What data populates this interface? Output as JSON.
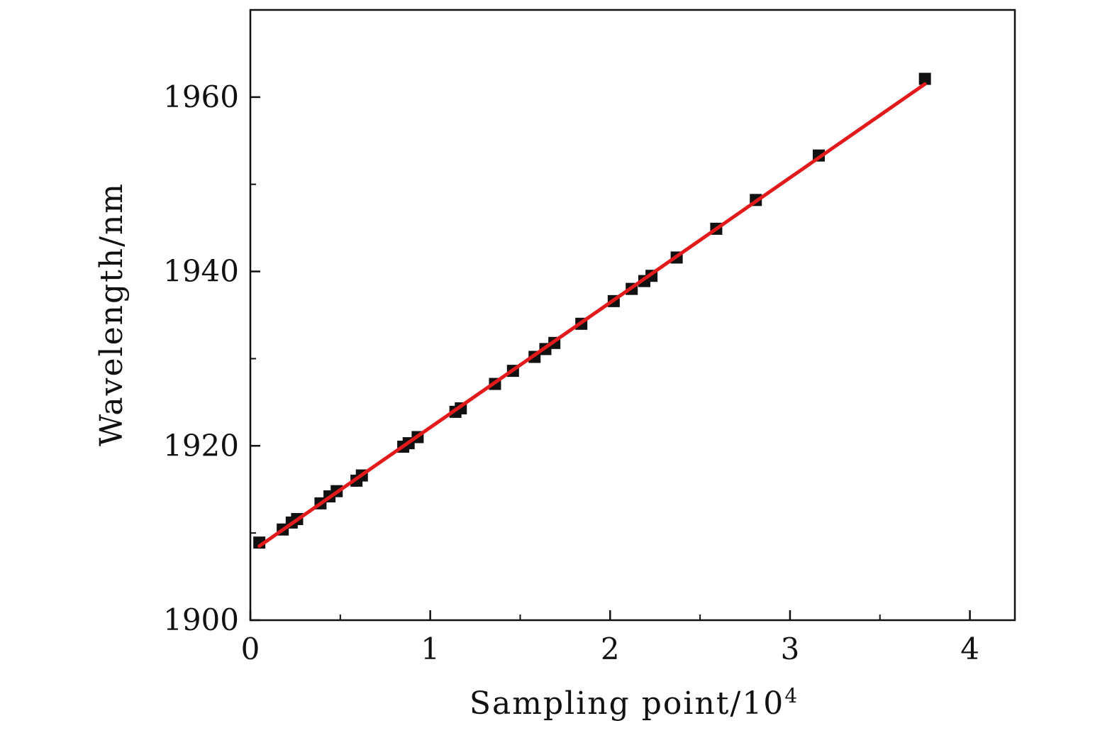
{
  "chart_data": {
    "type": "scatter",
    "title": "",
    "xlabel": "Sampling point/10",
    "xlabel_superscript": "4",
    "ylabel": "Wavelength/nm",
    "xlim": [
      0,
      4.25
    ],
    "ylim": [
      1900,
      1970
    ],
    "x_ticks": [
      0,
      1,
      2,
      3,
      4
    ],
    "x_tick_labels": [
      "0",
      "1",
      "2",
      "3",
      "4"
    ],
    "x_minor_ticks": [
      0.5,
      1.5,
      2.5,
      3.5
    ],
    "y_ticks": [
      1900,
      1920,
      1940,
      1960
    ],
    "y_tick_labels": [
      "1900",
      "1920",
      "1940",
      "1960"
    ],
    "y_minor_ticks": [
      1910,
      1930,
      1950
    ],
    "grid": false,
    "legend": "none",
    "colors": {
      "points": "#111111",
      "fit_line": "#e31a1c",
      "axes": "#111111"
    },
    "series": [
      {
        "kind": "points",
        "marker": "square",
        "x": [
          0.05,
          0.18,
          0.23,
          0.26,
          0.39,
          0.44,
          0.48,
          0.59,
          0.62,
          0.85,
          0.88,
          0.93,
          1.14,
          1.17,
          1.36,
          1.46,
          1.58,
          1.64,
          1.69,
          1.84,
          2.02,
          2.12,
          2.19,
          2.23,
          2.37,
          2.59,
          2.81,
          3.16,
          3.75
        ],
        "y": [
          1908.9,
          1910.4,
          1911.2,
          1911.6,
          1913.4,
          1914.2,
          1914.8,
          1916.0,
          1916.6,
          1919.9,
          1920.3,
          1921.0,
          1923.9,
          1924.3,
          1927.1,
          1928.6,
          1930.2,
          1931.1,
          1931.8,
          1934.0,
          1936.6,
          1938.0,
          1938.9,
          1939.5,
          1941.6,
          1944.9,
          1948.2,
          1953.3,
          1962.1
        ]
      },
      {
        "kind": "linear-fit",
        "x": [
          0.05,
          3.75
        ],
        "y": [
          1908.5,
          1961.5
        ]
      }
    ]
  }
}
